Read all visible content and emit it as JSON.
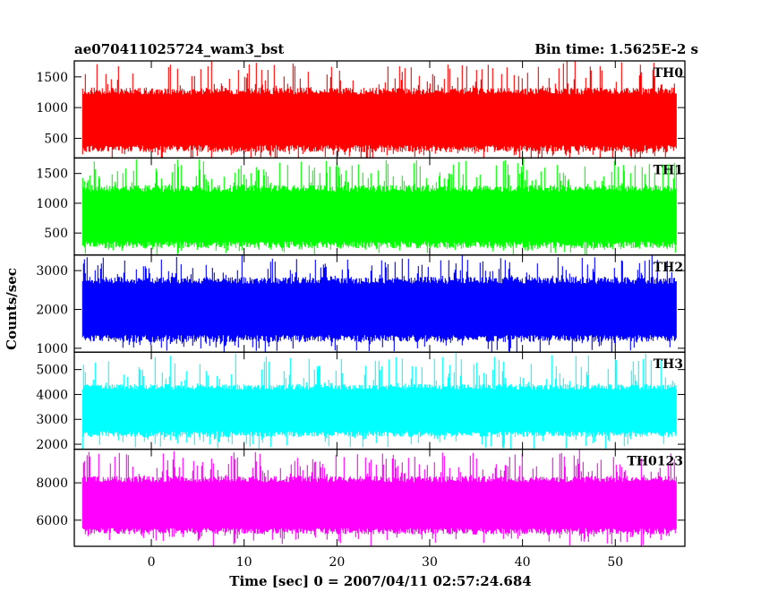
{
  "header": {
    "left_title": "ae070411025724_wam3_bst",
    "right_title": "Bin time: 1.5625E-2 s"
  },
  "chart_data": {
    "type": "line",
    "xlabel": "Time [sec] 0 = 2007/04/11 02:57:24.684",
    "ylabel": "Counts/sec",
    "xlim": [
      -8.3,
      57.5
    ],
    "data_x_range": [
      -7.4,
      56.6
    ],
    "x_ticks": [
      0,
      10,
      20,
      30,
      40,
      50
    ],
    "panels": [
      {
        "name": "TH0",
        "color": "#ff0000",
        "ylim": [
          180,
          1760
        ],
        "y_ticks": [
          500,
          1000,
          1500
        ],
        "band_low": 330,
        "band_high": 1270,
        "spike_low": 130,
        "spike_high": 1750,
        "seed": 11
      },
      {
        "name": "TH1",
        "color": "#00ff00",
        "ylim": [
          130,
          1760
        ],
        "y_ticks": [
          500,
          1000,
          1500
        ],
        "band_low": 300,
        "band_high": 1250,
        "spike_low": 160,
        "spike_high": 1720,
        "seed": 23
      },
      {
        "name": "TH2",
        "color": "#0000ff",
        "ylim": [
          900,
          3400
        ],
        "y_ticks": [
          1000,
          2000,
          3000
        ],
        "band_low": 1250,
        "band_high": 2750,
        "spike_low": 950,
        "spike_high": 3350,
        "seed": 37
      },
      {
        "name": "TH3",
        "color": "#00ffff",
        "ylim": [
          1800,
          5700
        ],
        "y_ticks": [
          2000,
          3000,
          4000,
          5000
        ],
        "band_low": 2400,
        "band_high": 4300,
        "spike_low": 1900,
        "spike_high": 5600,
        "seed": 51
      },
      {
        "name": "TH0123",
        "color": "#ff00ff",
        "ylim": [
          4600,
          9800
        ],
        "y_ticks": [
          6000,
          8000
        ],
        "band_low": 5400,
        "band_high": 8200,
        "spike_low": 4700,
        "spike_high": 9600,
        "seed": 73
      }
    ]
  }
}
